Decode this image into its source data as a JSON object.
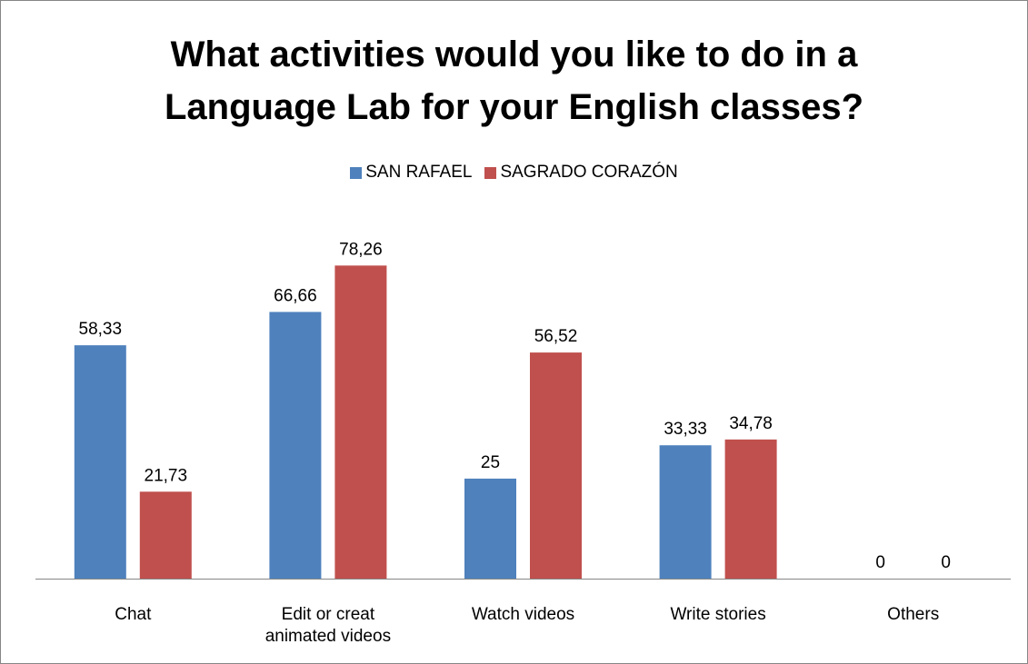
{
  "chart_data": {
    "type": "bar",
    "title_lines": [
      "What activities would you like to do in a",
      "Language Lab for your English classes?"
    ],
    "categories": [
      [
        "Chat"
      ],
      [
        "Edit or creat",
        "animated videos"
      ],
      [
        "Watch videos"
      ],
      [
        "Write stories"
      ],
      [
        "Others"
      ]
    ],
    "series": [
      {
        "name": "SAN RAFAEL",
        "color": "#4F81BD",
        "values": [
          58.33,
          66.66,
          25,
          33.33,
          0
        ],
        "labels": [
          "58,33",
          "66,66",
          "25",
          "33,33",
          "0"
        ]
      },
      {
        "name": "SAGRADO CORAZÓN",
        "color": "#C0504D",
        "values": [
          21.73,
          78.26,
          56.52,
          34.78,
          0
        ],
        "labels": [
          "21,73",
          "78,26",
          "56,52",
          "34,78",
          "0"
        ]
      }
    ],
    "ylim": [
      0,
      100
    ],
    "grid": false,
    "legend_position": "top"
  }
}
